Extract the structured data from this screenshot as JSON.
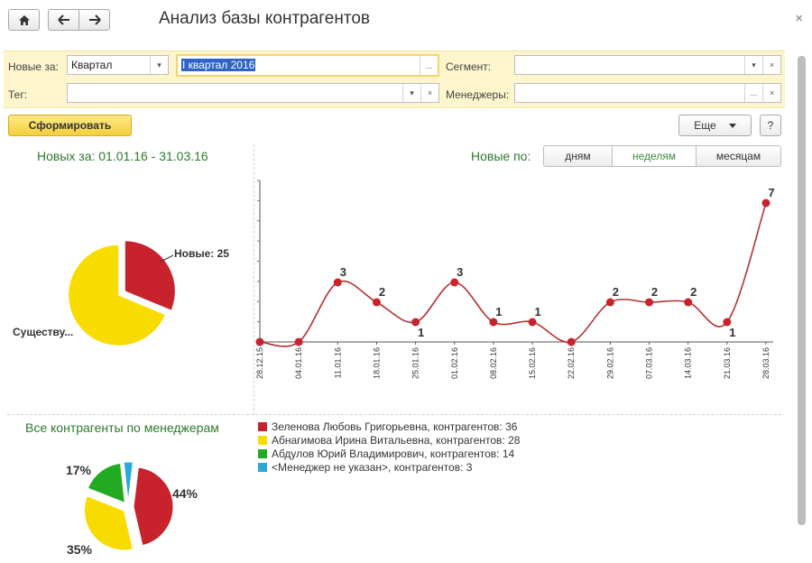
{
  "window": {
    "title": "Анализ базы контрагентов",
    "home_icon": "home-icon",
    "back_icon": "arrow-left-icon",
    "forward_icon": "arrow-right-icon",
    "close_label": "×"
  },
  "filters": {
    "new_for_label": "Новые за:",
    "new_for_value": "Квартал",
    "period_value": "I квартал 2016",
    "tag_label": "Тег:",
    "tag_value": "",
    "segment_label": "Сегмент:",
    "segment_value": "",
    "managers_label": "Менеджеры:",
    "managers_value": "",
    "dots": "...",
    "clear": "×",
    "dropdown": "▾"
  },
  "toolbar": {
    "generate_label": "Сформировать",
    "more_label": "Еще",
    "help_label": "?"
  },
  "new_panel": {
    "heading": "Новых за: 01.01.16 - 31.03.16",
    "grouping_label": "Новые по:",
    "grouping_options": [
      "дням",
      "неделям",
      "месяцам"
    ],
    "grouping_selected": "неделям"
  },
  "managers_panel": {
    "heading": "Все контрагенты по менеджерам"
  },
  "colors": {
    "red": "#c8232c",
    "yellow": "#f8dc00",
    "green": "#22aa22",
    "cyan": "#2aa8d8",
    "line": "#b83030"
  },
  "chart_data": [
    {
      "type": "pie",
      "labels": [
        "Новые: 25",
        "Существу..."
      ],
      "values": [
        25,
        55
      ],
      "colors": [
        "#c8232c",
        "#f8dc00"
      ]
    },
    {
      "type": "line",
      "x": [
        "28.12.15",
        "04.01.16",
        "11.01.16",
        "18.01.16",
        "25.01.16",
        "01.02.16",
        "08.02.16",
        "15.02.16",
        "22.02.16",
        "29.02.16",
        "07.03.16",
        "14.03.16",
        "21.03.16",
        "28.03.16"
      ],
      "values": [
        0,
        0,
        3,
        2,
        1,
        3,
        1,
        1,
        0,
        2,
        2,
        2,
        1,
        7
      ],
      "data_labels": [
        "",
        "",
        "3",
        "2",
        "1",
        "3",
        "1",
        "1",
        "",
        "2",
        "2",
        "2",
        "1",
        "7"
      ],
      "ylim": [
        0,
        8
      ]
    },
    {
      "type": "pie",
      "series": [
        {
          "name": "Зеленова Любовь Григорьевна, контрагентов: 36",
          "value": 36,
          "percent": "44%",
          "color": "#c8232c"
        },
        {
          "name": "Абнагимова Ирина Витальевна, контрагентов: 28",
          "value": 28,
          "percent": "35%",
          "color": "#f8dc00"
        },
        {
          "name": "Абдулов Юрий Владимирович, контрагентов: 14",
          "value": 14,
          "percent": "17%",
          "color": "#22aa22"
        },
        {
          "name": "<Менеджер не указан>, контрагентов: 3",
          "value": 3,
          "percent": "",
          "color": "#2aa8d8"
        }
      ]
    }
  ]
}
